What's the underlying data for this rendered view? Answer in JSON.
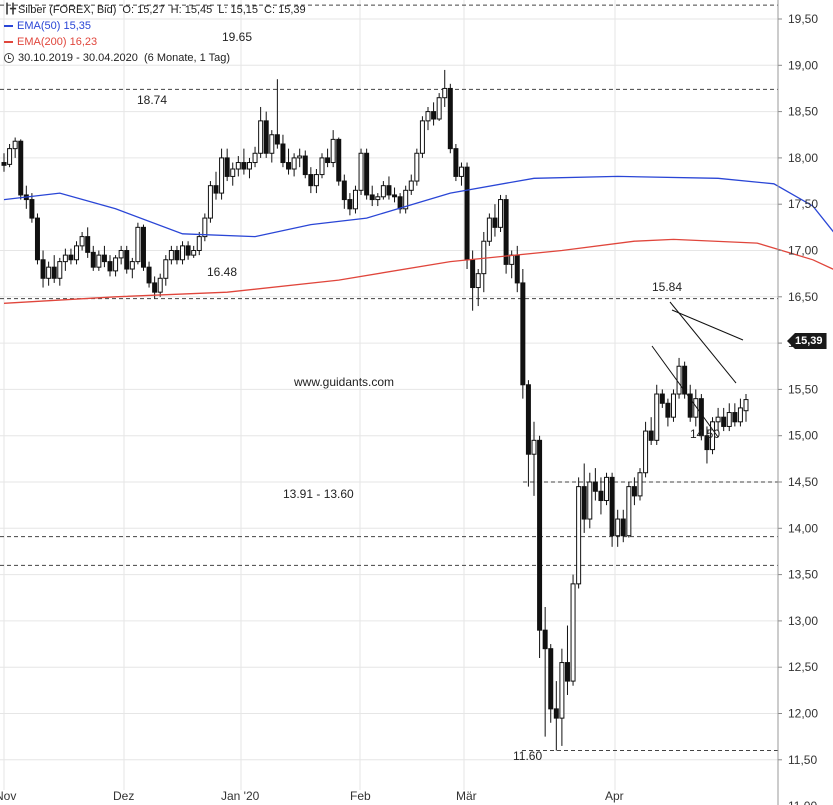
{
  "legend": {
    "instrument": "Silber (FOREX, Bid)",
    "ohlc": {
      "o_label": "O:",
      "o": "15,27",
      "h_label": "H:",
      "h": "15,45",
      "l_label": "L:",
      "l": "15,15",
      "c_label": "C:",
      "c": "15,39"
    },
    "ema50_label": "EMA(50)",
    "ema50_value": "15,35",
    "ema200_label": "EMA(200)",
    "ema200_value": "16,23",
    "range": "30.10.2019 - 30.04.2020",
    "range_detail": "(6 Monate, 1 Tag)"
  },
  "colors": {
    "ema50": "#2a46d6",
    "ema200": "#e0463c",
    "candle": "#111111",
    "grid": "#e6e6e6",
    "dashed": "#444444"
  },
  "current_price_label": "15,39",
  "watermark": "www.guidants.com",
  "chart_data": {
    "type": "candlestick",
    "title": "Silber (FOREX, Bid)",
    "ylim": [
      11.0,
      19.6
    ],
    "y_ticks": [
      "19,50",
      "19,00",
      "18,50",
      "18,00",
      "17,50",
      "17,00",
      "16,50",
      "16,00",
      "15,50",
      "15,00",
      "14,50",
      "14,00",
      "13,50",
      "13,00",
      "12,50",
      "12,00",
      "11,50",
      "11,00"
    ],
    "x_ticks": [
      "Nov",
      "Dez",
      "Jan '20",
      "Feb",
      "Mär",
      "Apr"
    ],
    "annotations": [
      "19.65",
      "18.74",
      "16.48",
      "15.84",
      "14.50",
      "13.91 - 13.60",
      "11.60"
    ],
    "horizontal_levels": [
      19.65,
      18.74,
      16.48,
      14.5,
      13.91,
      13.6,
      11.6
    ],
    "series": [
      {
        "name": "EMA(50)",
        "points": [
          [
            0,
            17.55
          ],
          [
            10,
            17.62
          ],
          [
            20,
            17.45
          ],
          [
            32,
            17.18
          ],
          [
            45,
            17.15
          ],
          [
            55,
            17.28
          ],
          [
            65,
            17.35
          ],
          [
            80,
            17.62
          ],
          [
            95,
            17.78
          ],
          [
            110,
            17.8
          ],
          [
            128,
            17.78
          ],
          [
            138,
            17.72
          ],
          [
            145,
            17.48
          ],
          [
            152,
            16.95
          ],
          [
            158,
            16.4
          ],
          [
            165,
            15.88
          ],
          [
            172,
            15.55
          ],
          [
            182,
            15.38
          ],
          [
            195,
            15.35
          ]
        ]
      },
      {
        "name": "EMA(200)",
        "points": [
          [
            0,
            16.43
          ],
          [
            20,
            16.5
          ],
          [
            40,
            16.55
          ],
          [
            60,
            16.68
          ],
          [
            80,
            16.88
          ],
          [
            100,
            17.0
          ],
          [
            113,
            17.1
          ],
          [
            120,
            17.12
          ],
          [
            135,
            17.08
          ],
          [
            145,
            16.9
          ],
          [
            155,
            16.62
          ],
          [
            165,
            16.42
          ],
          [
            180,
            16.3
          ],
          [
            195,
            16.23
          ]
        ]
      }
    ],
    "candles": [
      {
        "o": 17.95,
        "h": 18.05,
        "l": 17.85,
        "c": 17.92
      },
      {
        "o": 17.93,
        "h": 18.15,
        "l": 17.9,
        "c": 18.1
      },
      {
        "o": 18.1,
        "h": 18.22,
        "l": 18.0,
        "c": 18.18
      },
      {
        "o": 18.18,
        "h": 18.2,
        "l": 17.55,
        "c": 17.6
      },
      {
        "o": 17.6,
        "h": 17.7,
        "l": 17.45,
        "c": 17.55
      },
      {
        "o": 17.55,
        "h": 17.62,
        "l": 17.3,
        "c": 17.35
      },
      {
        "o": 17.35,
        "h": 17.4,
        "l": 16.85,
        "c": 16.9
      },
      {
        "o": 16.9,
        "h": 17.0,
        "l": 16.6,
        "c": 16.7
      },
      {
        "o": 16.7,
        "h": 16.88,
        "l": 16.62,
        "c": 16.82
      },
      {
        "o": 16.82,
        "h": 16.95,
        "l": 16.65,
        "c": 16.7
      },
      {
        "o": 16.7,
        "h": 16.92,
        "l": 16.62,
        "c": 16.88
      },
      {
        "o": 16.88,
        "h": 17.02,
        "l": 16.78,
        "c": 16.95
      },
      {
        "o": 16.95,
        "h": 17.02,
        "l": 16.85,
        "c": 16.9
      },
      {
        "o": 16.9,
        "h": 17.1,
        "l": 16.85,
        "c": 17.05
      },
      {
        "o": 17.05,
        "h": 17.2,
        "l": 17.0,
        "c": 17.15
      },
      {
        "o": 17.15,
        "h": 17.25,
        "l": 16.92,
        "c": 16.98
      },
      {
        "o": 16.98,
        "h": 17.05,
        "l": 16.78,
        "c": 16.82
      },
      {
        "o": 16.82,
        "h": 17.0,
        "l": 16.78,
        "c": 16.95
      },
      {
        "o": 16.95,
        "h": 17.05,
        "l": 16.82,
        "c": 16.88
      },
      {
        "o": 16.88,
        "h": 16.95,
        "l": 16.72,
        "c": 16.78
      },
      {
        "o": 16.78,
        "h": 16.95,
        "l": 16.72,
        "c": 16.92
      },
      {
        "o": 16.92,
        "h": 17.05,
        "l": 16.85,
        "c": 17.0
      },
      {
        "o": 17.0,
        "h": 17.05,
        "l": 16.75,
        "c": 16.8
      },
      {
        "o": 16.8,
        "h": 16.92,
        "l": 16.7,
        "c": 16.88
      },
      {
        "o": 16.88,
        "h": 17.3,
        "l": 16.85,
        "c": 17.25
      },
      {
        "o": 17.25,
        "h": 17.28,
        "l": 16.78,
        "c": 16.82
      },
      {
        "o": 16.82,
        "h": 16.88,
        "l": 16.6,
        "c": 16.65
      },
      {
        "o": 16.65,
        "h": 16.72,
        "l": 16.48,
        "c": 16.55
      },
      {
        "o": 16.55,
        "h": 16.75,
        "l": 16.5,
        "c": 16.7
      },
      {
        "o": 16.7,
        "h": 16.95,
        "l": 16.62,
        "c": 16.9
      },
      {
        "o": 16.9,
        "h": 17.05,
        "l": 16.85,
        "c": 17.0
      },
      {
        "o": 17.0,
        "h": 17.05,
        "l": 16.85,
        "c": 16.9
      },
      {
        "o": 16.9,
        "h": 17.1,
        "l": 16.85,
        "c": 17.05
      },
      {
        "o": 17.05,
        "h": 17.1,
        "l": 16.9,
        "c": 16.95
      },
      {
        "o": 16.95,
        "h": 17.05,
        "l": 16.92,
        "c": 17.0
      },
      {
        "o": 17.0,
        "h": 17.2,
        "l": 16.95,
        "c": 17.15
      },
      {
        "o": 17.15,
        "h": 17.4,
        "l": 17.1,
        "c": 17.35
      },
      {
        "o": 17.35,
        "h": 17.75,
        "l": 17.3,
        "c": 17.7
      },
      {
        "o": 17.7,
        "h": 17.85,
        "l": 17.55,
        "c": 17.62
      },
      {
        "o": 17.62,
        "h": 18.1,
        "l": 17.55,
        "c": 18.0
      },
      {
        "o": 18.0,
        "h": 18.1,
        "l": 17.75,
        "c": 17.8
      },
      {
        "o": 17.8,
        "h": 17.95,
        "l": 17.7,
        "c": 17.88
      },
      {
        "o": 17.88,
        "h": 18.02,
        "l": 17.8,
        "c": 17.95
      },
      {
        "o": 17.95,
        "h": 18.1,
        "l": 17.82,
        "c": 17.88
      },
      {
        "o": 17.88,
        "h": 18.0,
        "l": 17.78,
        "c": 17.95
      },
      {
        "o": 17.95,
        "h": 18.12,
        "l": 17.9,
        "c": 18.05
      },
      {
        "o": 18.05,
        "h": 18.55,
        "l": 18.0,
        "c": 18.4
      },
      {
        "o": 18.4,
        "h": 18.5,
        "l": 18.0,
        "c": 18.05
      },
      {
        "o": 18.05,
        "h": 18.3,
        "l": 17.95,
        "c": 18.25
      },
      {
        "o": 18.25,
        "h": 18.85,
        "l": 18.1,
        "c": 18.15
      },
      {
        "o": 18.15,
        "h": 18.25,
        "l": 17.9,
        "c": 17.95
      },
      {
        "o": 17.95,
        "h": 18.1,
        "l": 17.82,
        "c": 17.88
      },
      {
        "o": 17.88,
        "h": 18.05,
        "l": 17.8,
        "c": 18.0
      },
      {
        "o": 18.0,
        "h": 18.1,
        "l": 17.9,
        "c": 18.02
      },
      {
        "o": 18.02,
        "h": 18.08,
        "l": 17.78,
        "c": 17.82
      },
      {
        "o": 17.82,
        "h": 17.9,
        "l": 17.62,
        "c": 17.7
      },
      {
        "o": 17.7,
        "h": 17.88,
        "l": 17.62,
        "c": 17.82
      },
      {
        "o": 17.82,
        "h": 18.05,
        "l": 17.78,
        "c": 18.0
      },
      {
        "o": 18.0,
        "h": 18.1,
        "l": 17.9,
        "c": 17.95
      },
      {
        "o": 17.95,
        "h": 18.3,
        "l": 17.9,
        "c": 18.2
      },
      {
        "o": 18.2,
        "h": 18.22,
        "l": 17.7,
        "c": 17.75
      },
      {
        "o": 17.75,
        "h": 17.82,
        "l": 17.45,
        "c": 17.55
      },
      {
        "o": 17.55,
        "h": 17.62,
        "l": 17.38,
        "c": 17.45
      },
      {
        "o": 17.45,
        "h": 17.7,
        "l": 17.4,
        "c": 17.65
      },
      {
        "o": 17.65,
        "h": 18.1,
        "l": 17.6,
        "c": 18.05
      },
      {
        "o": 18.05,
        "h": 18.1,
        "l": 17.55,
        "c": 17.6
      },
      {
        "o": 17.6,
        "h": 17.7,
        "l": 17.48,
        "c": 17.55
      },
      {
        "o": 17.55,
        "h": 17.62,
        "l": 17.48,
        "c": 17.58
      },
      {
        "o": 17.58,
        "h": 17.75,
        "l": 17.55,
        "c": 17.7
      },
      {
        "o": 17.7,
        "h": 17.8,
        "l": 17.55,
        "c": 17.6
      },
      {
        "o": 17.6,
        "h": 17.68,
        "l": 17.52,
        "c": 17.58
      },
      {
        "o": 17.58,
        "h": 17.62,
        "l": 17.4,
        "c": 17.45
      },
      {
        "o": 17.45,
        "h": 17.7,
        "l": 17.4,
        "c": 17.65
      },
      {
        "o": 17.65,
        "h": 17.82,
        "l": 17.6,
        "c": 17.75
      },
      {
        "o": 17.75,
        "h": 18.1,
        "l": 17.7,
        "c": 18.05
      },
      {
        "o": 18.05,
        "h": 18.45,
        "l": 18.0,
        "c": 18.4
      },
      {
        "o": 18.4,
        "h": 18.55,
        "l": 18.3,
        "c": 18.5
      },
      {
        "o": 18.5,
        "h": 18.6,
        "l": 18.35,
        "c": 18.42
      },
      {
        "o": 18.42,
        "h": 18.7,
        "l": 18.4,
        "c": 18.65
      },
      {
        "o": 18.65,
        "h": 18.95,
        "l": 18.55,
        "c": 18.75
      },
      {
        "o": 18.75,
        "h": 18.8,
        "l": 18.05,
        "c": 18.1
      },
      {
        "o": 18.1,
        "h": 18.15,
        "l": 17.75,
        "c": 17.8
      },
      {
        "o": 17.8,
        "h": 17.95,
        "l": 17.7,
        "c": 17.9
      },
      {
        "o": 17.9,
        "h": 17.95,
        "l": 16.8,
        "c": 16.9
      },
      {
        "o": 16.9,
        "h": 17.0,
        "l": 16.35,
        "c": 16.6
      },
      {
        "o": 16.6,
        "h": 16.8,
        "l": 16.4,
        "c": 16.75
      },
      {
        "o": 16.75,
        "h": 17.2,
        "l": 16.55,
        "c": 17.1
      },
      {
        "o": 17.1,
        "h": 17.4,
        "l": 17.05,
        "c": 17.35
      },
      {
        "o": 17.35,
        "h": 17.5,
        "l": 17.15,
        "c": 17.25
      },
      {
        "o": 17.25,
        "h": 17.6,
        "l": 17.2,
        "c": 17.55
      },
      {
        "o": 17.55,
        "h": 17.6,
        "l": 16.75,
        "c": 16.85
      },
      {
        "o": 16.85,
        "h": 17.0,
        "l": 16.7,
        "c": 16.95
      },
      {
        "o": 16.95,
        "h": 17.05,
        "l": 16.55,
        "c": 16.65
      },
      {
        "o": 16.65,
        "h": 16.8,
        "l": 15.4,
        "c": 15.55
      },
      {
        "o": 15.55,
        "h": 15.6,
        "l": 14.45,
        "c": 14.8
      },
      {
        "o": 14.8,
        "h": 15.15,
        "l": 14.35,
        "c": 14.95
      },
      {
        "o": 14.95,
        "h": 15.0,
        "l": 12.6,
        "c": 12.9
      },
      {
        "o": 12.9,
        "h": 13.15,
        "l": 11.75,
        "c": 12.7
      },
      {
        "o": 12.7,
        "h": 12.75,
        "l": 11.9,
        "c": 12.05
      },
      {
        "o": 12.05,
        "h": 12.35,
        "l": 11.6,
        "c": 11.95
      },
      {
        "o": 11.95,
        "h": 12.7,
        "l": 11.65,
        "c": 12.55
      },
      {
        "o": 12.55,
        "h": 12.95,
        "l": 12.2,
        "c": 12.35
      },
      {
        "o": 12.35,
        "h": 13.5,
        "l": 12.3,
        "c": 13.4
      },
      {
        "o": 13.4,
        "h": 14.55,
        "l": 13.35,
        "c": 14.45
      },
      {
        "o": 14.45,
        "h": 14.7,
        "l": 13.95,
        "c": 14.1
      },
      {
        "o": 14.1,
        "h": 14.6,
        "l": 14.0,
        "c": 14.5
      },
      {
        "o": 14.5,
        "h": 14.65,
        "l": 14.3,
        "c": 14.4
      },
      {
        "o": 14.4,
        "h": 14.55,
        "l": 14.15,
        "c": 14.3
      },
      {
        "o": 14.3,
        "h": 14.6,
        "l": 14.25,
        "c": 14.55
      },
      {
        "o": 14.55,
        "h": 14.6,
        "l": 13.8,
        "c": 13.92
      },
      {
        "o": 13.92,
        "h": 14.2,
        "l": 13.8,
        "c": 14.1
      },
      {
        "o": 14.1,
        "h": 14.2,
        "l": 13.85,
        "c": 13.92
      },
      {
        "o": 13.92,
        "h": 14.5,
        "l": 13.9,
        "c": 14.45
      },
      {
        "o": 14.45,
        "h": 14.55,
        "l": 14.25,
        "c": 14.35
      },
      {
        "o": 14.35,
        "h": 14.65,
        "l": 14.3,
        "c": 14.6
      },
      {
        "o": 14.6,
        "h": 15.15,
        "l": 14.55,
        "c": 15.05
      },
      {
        "o": 15.05,
        "h": 15.2,
        "l": 14.9,
        "c": 14.95
      },
      {
        "o": 14.95,
        "h": 15.55,
        "l": 14.9,
        "c": 15.45
      },
      {
        "o": 15.45,
        "h": 15.5,
        "l": 15.3,
        "c": 15.35
      },
      {
        "o": 15.35,
        "h": 15.4,
        "l": 15.1,
        "c": 15.2
      },
      {
        "o": 15.2,
        "h": 15.5,
        "l": 15.15,
        "c": 15.45
      },
      {
        "o": 15.45,
        "h": 15.84,
        "l": 15.4,
        "c": 15.75
      },
      {
        "o": 15.75,
        "h": 15.8,
        "l": 15.4,
        "c": 15.45
      },
      {
        "o": 15.45,
        "h": 15.55,
        "l": 15.15,
        "c": 15.2
      },
      {
        "o": 15.2,
        "h": 15.5,
        "l": 15.1,
        "c": 15.4
      },
      {
        "o": 15.4,
        "h": 15.45,
        "l": 14.95,
        "c": 15.0
      },
      {
        "o": 15.0,
        "h": 15.1,
        "l": 14.7,
        "c": 14.85
      },
      {
        "o": 14.85,
        "h": 15.2,
        "l": 14.8,
        "c": 15.15
      },
      {
        "o": 15.15,
        "h": 15.3,
        "l": 15.05,
        "c": 15.2
      },
      {
        "o": 15.2,
        "h": 15.3,
        "l": 15.05,
        "c": 15.1
      },
      {
        "o": 15.1,
        "h": 15.35,
        "l": 15.05,
        "c": 15.25
      },
      {
        "o": 15.25,
        "h": 15.35,
        "l": 15.1,
        "c": 15.15
      },
      {
        "o": 15.15,
        "h": 15.4,
        "l": 15.1,
        "c": 15.3
      },
      {
        "o": 15.27,
        "h": 15.45,
        "l": 15.15,
        "c": 15.39
      }
    ]
  }
}
